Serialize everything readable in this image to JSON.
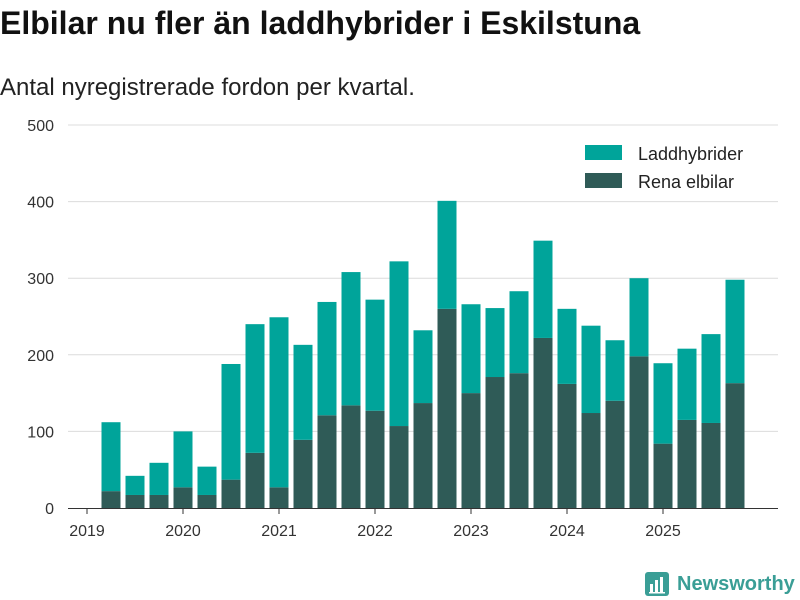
{
  "chart_data": {
    "type": "bar",
    "stacked": true,
    "title": "Elbilar nu fler än laddhybrider i Eskilstuna",
    "subtitle": "Antal nyregistrerade fordon per kvartal.",
    "x": [
      "2019-04-01",
      "2019-07-01",
      "2019-10-01",
      "2020-01-01",
      "2020-04-01",
      "2020-07-01",
      "2020-10-01",
      "2021-01-01",
      "2021-04-01",
      "2021-07-01",
      "2021-10-01",
      "2022-01-01",
      "2022-04-01",
      "2022-07-01",
      "2022-10-01",
      "2023-01-01",
      "2023-04-01",
      "2023-07-01",
      "2023-10-01",
      "2024-01-01",
      "2024-04-01",
      "2024-07-01",
      "2024-10-01",
      "2025-01-01",
      "2025-04-01",
      "2025-07-01",
      "2025-10-01"
    ],
    "series": [
      {
        "name": "Laddhybrider",
        "color": "#00a49a",
        "values": [
          90,
          25,
          42,
          73,
          37,
          151,
          168,
          222,
          124,
          148,
          174,
          145,
          215,
          95,
          141,
          116,
          90,
          107,
          127,
          98,
          114,
          79,
          102,
          105,
          93,
          116,
          135
        ]
      },
      {
        "name": "Rena elbilar",
        "color": "#2f5b57",
        "values": [
          22,
          17,
          17,
          27,
          17,
          37,
          72,
          27,
          89,
          121,
          134,
          127,
          107,
          137,
          260,
          150,
          171,
          176,
          222,
          162,
          124,
          140,
          198,
          84,
          115,
          111,
          163
        ]
      }
    ],
    "xticks": [
      "2019",
      "2020",
      "2021",
      "2022",
      "2023",
      "2024",
      "2025"
    ],
    "yticks": [
      0,
      100,
      200,
      300,
      400,
      500
    ],
    "ylim": [
      0,
      500
    ],
    "grid": true,
    "legend": "top-right"
  },
  "branding": {
    "name": "Newsworthy",
    "color": "#3a9e96",
    "icon": "bar-chart-icon"
  }
}
